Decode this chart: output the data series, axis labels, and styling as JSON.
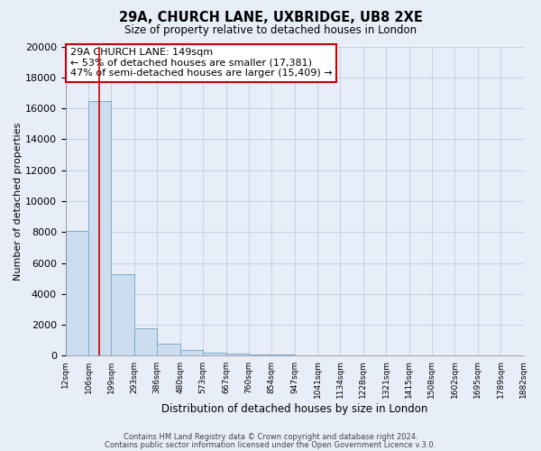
{
  "title1": "29A, CHURCH LANE, UXBRIDGE, UB8 2XE",
  "title2": "Size of property relative to detached houses in London",
  "xlabel": "Distribution of detached houses by size in London",
  "ylabel": "Number of detached properties",
  "bar_left_edges": [
    12,
    106,
    199,
    293,
    386,
    480,
    573,
    667,
    760,
    854,
    947,
    1041,
    1134,
    1228,
    1321,
    1415,
    1508,
    1602,
    1695,
    1789
  ],
  "bar_widths": [
    94,
    93,
    94,
    93,
    94,
    93,
    94,
    93,
    94,
    93,
    94,
    93,
    94,
    93,
    94,
    93,
    94,
    93,
    94,
    93
  ],
  "bar_heights": [
    8100,
    16500,
    5300,
    1800,
    800,
    350,
    200,
    120,
    80,
    60,
    0,
    0,
    0,
    0,
    0,
    0,
    0,
    0,
    0,
    0
  ],
  "bar_color": "#ccddf0",
  "bar_edge_color": "#7aaacc",
  "bar_edge_width": 0.7,
  "property_line_x": 149,
  "property_line_color": "#cc0000",
  "xlim": [
    12,
    1882
  ],
  "ylim": [
    0,
    20000
  ],
  "yticks": [
    0,
    2000,
    4000,
    6000,
    8000,
    10000,
    12000,
    14000,
    16000,
    18000,
    20000
  ],
  "xtick_labels": [
    "12sqm",
    "106sqm",
    "199sqm",
    "293sqm",
    "386sqm",
    "480sqm",
    "573sqm",
    "667sqm",
    "760sqm",
    "854sqm",
    "947sqm",
    "1041sqm",
    "1134sqm",
    "1228sqm",
    "1321sqm",
    "1415sqm",
    "1508sqm",
    "1602sqm",
    "1695sqm",
    "1789sqm",
    "1882sqm"
  ],
  "annotation_line1": "29A CHURCH LANE: 149sqm",
  "annotation_line2": "← 53% of detached houses are smaller (17,381)",
  "annotation_line3": "47% of semi-detached houses are larger (15,409) →",
  "annotation_box_color": "#ffffff",
  "annotation_box_edge_color": "#cc0000",
  "grid_color": "#c0cce0",
  "background_color": "#e8eef8",
  "footer1": "Contains HM Land Registry data © Crown copyright and database right 2024.",
  "footer2": "Contains public sector information licensed under the Open Government Licence v.3.0."
}
